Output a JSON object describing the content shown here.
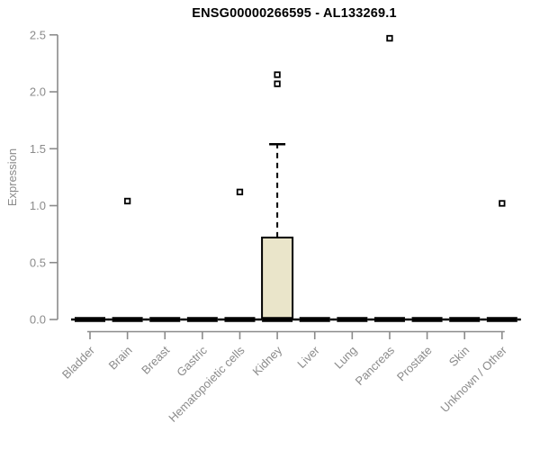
{
  "title": "ENSG00000266595 - AL133269.1",
  "chart_data": {
    "type": "boxplot",
    "title": "ENSG00000266595 - AL133269.1",
    "xlabel": "",
    "ylabel": "Expression",
    "ylim": [
      0,
      2.5
    ],
    "yticks": [
      "0.0",
      "0.5",
      "1.0",
      "1.5",
      "2.0",
      "2.5"
    ],
    "grid": false,
    "legend": "none",
    "categories": [
      "Bladder",
      "Brain",
      "Breast",
      "Gastric",
      "Hematopoietic cells",
      "Kidney",
      "Liver",
      "Lung",
      "Pancreas",
      "Prostate",
      "Skin",
      "Unknown / Other"
    ],
    "series": [
      {
        "category": "Bladder",
        "whisker_low": 0,
        "q1": 0,
        "median": 0,
        "q3": 0,
        "whisker_high": 0,
        "outliers": []
      },
      {
        "category": "Brain",
        "whisker_low": 0,
        "q1": 0,
        "median": 0,
        "q3": 0,
        "whisker_high": 0,
        "outliers": [
          1.04
        ]
      },
      {
        "category": "Breast",
        "whisker_low": 0,
        "q1": 0,
        "median": 0,
        "q3": 0,
        "whisker_high": 0,
        "outliers": []
      },
      {
        "category": "Gastric",
        "whisker_low": 0,
        "q1": 0,
        "median": 0,
        "q3": 0,
        "whisker_high": 0,
        "outliers": []
      },
      {
        "category": "Hematopoietic cells",
        "whisker_low": 0,
        "q1": 0,
        "median": 0,
        "q3": 0,
        "whisker_high": 0,
        "outliers": [
          1.12
        ]
      },
      {
        "category": "Kidney",
        "whisker_low": 0,
        "q1": 0,
        "median": 0,
        "q3": 0.72,
        "whisker_high": 1.54,
        "outliers": [
          2.07,
          2.15
        ]
      },
      {
        "category": "Liver",
        "whisker_low": 0,
        "q1": 0,
        "median": 0,
        "q3": 0,
        "whisker_high": 0,
        "outliers": []
      },
      {
        "category": "Lung",
        "whisker_low": 0,
        "q1": 0,
        "median": 0,
        "q3": 0,
        "whisker_high": 0,
        "outliers": []
      },
      {
        "category": "Pancreas",
        "whisker_low": 0,
        "q1": 0,
        "median": 0,
        "q3": 0,
        "whisker_high": 0,
        "outliers": [
          2.47
        ]
      },
      {
        "category": "Prostate",
        "whisker_low": 0,
        "q1": 0,
        "median": 0,
        "q3": 0,
        "whisker_high": 0,
        "outliers": []
      },
      {
        "category": "Skin",
        "whisker_low": 0,
        "q1": 0,
        "median": 0,
        "q3": 0,
        "whisker_high": 0,
        "outliers": []
      },
      {
        "category": "Unknown / Other",
        "whisker_low": 0,
        "q1": 0,
        "median": 0,
        "q3": 0,
        "whisker_high": 0,
        "outliers": [
          1.02
        ]
      }
    ],
    "colors": {
      "background": "#ffffff",
      "title_text": "#000000",
      "axis_line": "#8b8b8b",
      "tick_text": "#8b8b8b",
      "box_fill": "#eae5ca",
      "box_stroke": "#000000",
      "median": "#000000",
      "whisker": "#000000",
      "outlier_stroke": "#000000",
      "outlier_fill": "#ffffff"
    }
  }
}
